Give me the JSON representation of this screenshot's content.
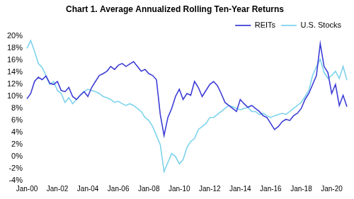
{
  "chart_data": {
    "type": "line",
    "title": "Chart 1. Average Annualized Rolling Ten-Year Returns",
    "categories": [
      "Jan-00",
      null,
      null,
      null,
      null,
      null,
      null,
      null,
      "Jan-02",
      null,
      null,
      null,
      null,
      null,
      null,
      null,
      "Jan-04",
      null,
      null,
      null,
      null,
      null,
      null,
      null,
      "Jan-06",
      null,
      null,
      null,
      null,
      null,
      null,
      null,
      "Jan-08",
      null,
      null,
      null,
      null,
      null,
      null,
      null,
      "Jan-10",
      null,
      null,
      null,
      null,
      null,
      null,
      null,
      "Jan-12",
      null,
      null,
      null,
      null,
      null,
      null,
      null,
      "Jan-14",
      null,
      null,
      null,
      null,
      null,
      null,
      null,
      "Jan-16",
      null,
      null,
      null,
      null,
      null,
      null,
      null,
      "Jan-18",
      null,
      null,
      null,
      null,
      null,
      null,
      null,
      "Jan-20",
      null,
      null,
      null,
      null
    ],
    "series": [
      {
        "name": "REITs",
        "color": "#3d3dd6",
        "values": [
          9.6,
          10.5,
          12.5,
          13.2,
          12.8,
          13.4,
          12.2,
          12.0,
          12.5,
          11.0,
          10.8,
          11.5,
          10.0,
          9.5,
          10.2,
          10.8,
          10.0,
          11.5,
          12.5,
          13.5,
          13.8,
          14.2,
          15.0,
          14.5,
          15.2,
          15.5,
          15.0,
          15.4,
          15.8,
          15.0,
          14.2,
          14.5,
          13.8,
          13.5,
          12.8,
          7.0,
          3.5,
          6.5,
          8.0,
          10.0,
          11.2,
          9.5,
          10.5,
          10.2,
          12.5,
          11.5,
          10.0,
          11.0,
          12.0,
          12.5,
          11.8,
          10.5,
          9.0,
          8.5,
          8.0,
          7.5,
          9.5,
          8.8,
          8.2,
          8.5,
          8.0,
          7.5,
          6.8,
          6.5,
          5.5,
          4.5,
          5.0,
          5.8,
          6.2,
          6.0,
          6.8,
          7.2,
          8.0,
          9.5,
          10.5,
          12.0,
          13.5,
          18.8,
          15.0,
          14.0,
          10.5,
          12.0,
          8.5,
          10.2,
          8.3
        ]
      },
      {
        "name": "U.S. Stocks",
        "color": "#7dd3ec",
        "values": [
          18.0,
          19.3,
          17.5,
          15.5,
          14.8,
          13.5,
          12.0,
          12.5,
          11.0,
          10.5,
          9.0,
          9.8,
          8.8,
          9.5,
          10.2,
          10.8,
          11.2,
          11.0,
          10.8,
          10.5,
          10.0,
          9.8,
          9.5,
          9.0,
          9.2,
          8.8,
          8.5,
          8.8,
          8.5,
          8.0,
          7.5,
          6.5,
          6.0,
          5.0,
          3.5,
          2.0,
          -2.5,
          -1.0,
          0.5,
          0.0,
          -1.2,
          -0.5,
          1.5,
          2.5,
          3.0,
          4.5,
          5.0,
          5.5,
          6.5,
          6.5,
          7.0,
          7.5,
          8.0,
          8.5,
          8.3,
          8.0,
          7.8,
          8.0,
          8.2,
          7.5,
          7.5,
          7.0,
          7.2,
          6.8,
          6.5,
          6.8,
          7.0,
          7.2,
          7.0,
          7.5,
          8.0,
          8.5,
          9.0,
          10.0,
          11.0,
          13.5,
          15.0,
          16.2,
          14.0,
          13.0,
          13.5,
          14.2,
          13.0,
          15.0,
          12.7
        ]
      }
    ],
    "ylim": [
      -4,
      20
    ],
    "yticks": [
      {
        "value": -4,
        "label": "-4%"
      },
      {
        "value": -2,
        "label": "-2%"
      },
      {
        "value": 0,
        "label": "0%"
      },
      {
        "value": 2,
        "label": "2%"
      },
      {
        "value": 4,
        "label": "4%"
      },
      {
        "value": 6,
        "label": "6%"
      },
      {
        "value": 8,
        "label": "8%"
      },
      {
        "value": 10,
        "label": "10%"
      },
      {
        "value": 12,
        "label": "12%"
      },
      {
        "value": 14,
        "label": "14%"
      },
      {
        "value": 16,
        "label": "16%"
      },
      {
        "value": 18,
        "label": "18%"
      },
      {
        "value": 20,
        "label": "20%"
      }
    ],
    "grid": false,
    "legend": "top-right"
  }
}
